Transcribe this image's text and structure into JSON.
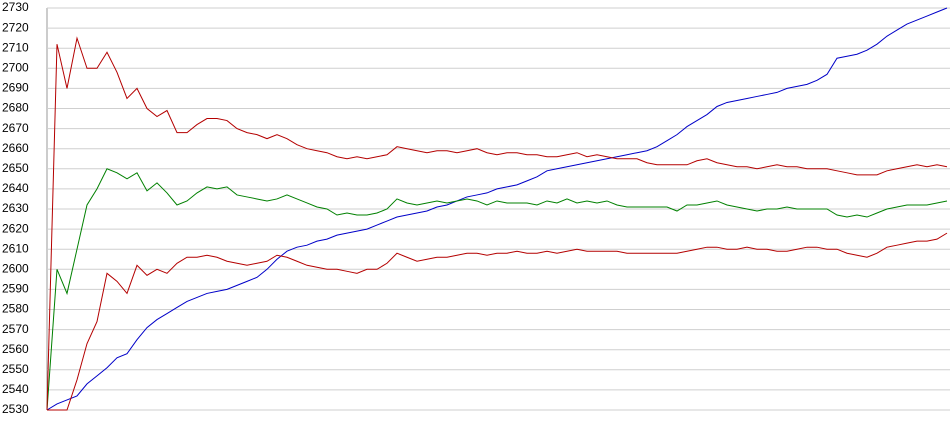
{
  "chart_data": {
    "type": "line",
    "ylim": [
      2530,
      2730
    ],
    "yticks": [
      2530,
      2540,
      2550,
      2560,
      2570,
      2580,
      2590,
      2600,
      2610,
      2620,
      2630,
      2640,
      2650,
      2660,
      2670,
      2680,
      2690,
      2700,
      2710,
      2720,
      2730
    ],
    "grid": true,
    "series": [
      {
        "color": "#0000c8",
        "values": [
          2530,
          2533,
          2535,
          2537,
          2543,
          2547,
          2551,
          2556,
          2558,
          2565,
          2571,
          2575,
          2578,
          2581,
          2584,
          2586,
          2588,
          2589,
          2590,
          2592,
          2594,
          2596,
          2600,
          2605,
          2609,
          2611,
          2612,
          2614,
          2615,
          2617,
          2618,
          2619,
          2620,
          2622,
          2624,
          2626,
          2627,
          2628,
          2629,
          2631,
          2632,
          2634,
          2636,
          2637,
          2638,
          2640,
          2641,
          2642,
          2644,
          2646,
          2649,
          2650,
          2651,
          2652,
          2653,
          2654,
          2655,
          2656,
          2657,
          2658,
          2659,
          2661,
          2664,
          2667,
          2671,
          2674,
          2677,
          2681,
          2683,
          2684,
          2685,
          2686,
          2687,
          2688,
          2690,
          2691,
          2692,
          2694,
          2697,
          2705,
          2706,
          2707,
          2709,
          2712,
          2716,
          2719,
          2722,
          2724,
          2726,
          2728,
          2730
        ]
      },
      {
        "color": "#008000",
        "values": [
          2530,
          2600,
          2588,
          2610,
          2632,
          2640,
          2650,
          2648,
          2645,
          2648,
          2639,
          2643,
          2638,
          2632,
          2634,
          2638,
          2641,
          2640,
          2641,
          2637,
          2636,
          2635,
          2634,
          2635,
          2637,
          2635,
          2633,
          2631,
          2630,
          2627,
          2628,
          2627,
          2627,
          2628,
          2630,
          2635,
          2633,
          2632,
          2633,
          2634,
          2633,
          2634,
          2635,
          2634,
          2632,
          2634,
          2633,
          2633,
          2633,
          2632,
          2634,
          2633,
          2635,
          2633,
          2634,
          2633,
          2634,
          2632,
          2631,
          2631,
          2631,
          2631,
          2631,
          2629,
          2632,
          2632,
          2633,
          2634,
          2632,
          2631,
          2630,
          2629,
          2630,
          2630,
          2631,
          2630,
          2630,
          2630,
          2630,
          2627,
          2626,
          2627,
          2626,
          2628,
          2630,
          2631,
          2632,
          2632,
          2632,
          2633,
          2634
        ]
      },
      {
        "color": "#b40000",
        "values": [
          2530,
          2712,
          2690,
          2715,
          2700,
          2700,
          2708,
          2698,
          2685,
          2690,
          2680,
          2676,
          2679,
          2668,
          2668,
          2672,
          2675,
          2675,
          2674,
          2670,
          2668,
          2667,
          2665,
          2667,
          2665,
          2662,
          2660,
          2659,
          2658,
          2656,
          2655,
          2656,
          2655,
          2656,
          2657,
          2661,
          2660,
          2659,
          2658,
          2659,
          2659,
          2658,
          2659,
          2660,
          2658,
          2657,
          2658,
          2658,
          2657,
          2657,
          2656,
          2656,
          2657,
          2658,
          2656,
          2657,
          2656,
          2655,
          2655,
          2655,
          2653,
          2652,
          2652,
          2652,
          2652,
          2654,
          2655,
          2653,
          2652,
          2651,
          2651,
          2650,
          2651,
          2652,
          2651,
          2651,
          2650,
          2650,
          2650,
          2649,
          2648,
          2647,
          2647,
          2647,
          2649,
          2650,
          2651,
          2652,
          2651,
          2652,
          2651
        ]
      },
      {
        "color": "#b40000",
        "values": [
          2530,
          2530,
          2530,
          2545,
          2563,
          2574,
          2598,
          2594,
          2588,
          2602,
          2597,
          2600,
          2598,
          2603,
          2606,
          2606,
          2607,
          2606,
          2604,
          2603,
          2602,
          2603,
          2604,
          2607,
          2606,
          2604,
          2602,
          2601,
          2600,
          2600,
          2599,
          2598,
          2600,
          2600,
          2603,
          2608,
          2606,
          2604,
          2605,
          2606,
          2606,
          2607,
          2608,
          2608,
          2607,
          2608,
          2608,
          2609,
          2608,
          2608,
          2609,
          2608,
          2609,
          2610,
          2609,
          2609,
          2609,
          2609,
          2608,
          2608,
          2608,
          2608,
          2608,
          2608,
          2609,
          2610,
          2611,
          2611,
          2610,
          2610,
          2611,
          2610,
          2610,
          2609,
          2609,
          2610,
          2611,
          2611,
          2610,
          2610,
          2608,
          2607,
          2606,
          2608,
          2611,
          2612,
          2613,
          2614,
          2614,
          2615,
          2618
        ]
      }
    ]
  }
}
